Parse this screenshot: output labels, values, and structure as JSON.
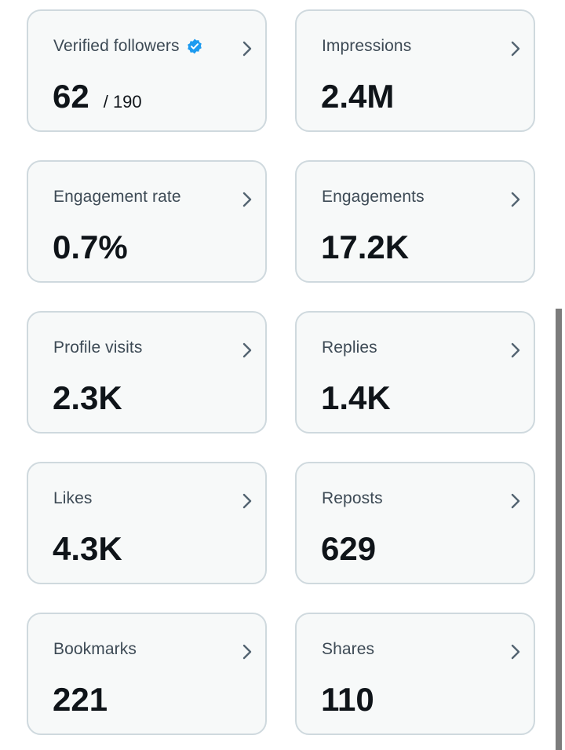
{
  "metrics": [
    {
      "label": "Verified followers",
      "value": "62",
      "subvalue": "/ 190",
      "verified_badge_color": "#1d9bf0"
    },
    {
      "label": "Impressions",
      "value": "2.4M"
    },
    {
      "label": "Engagement rate",
      "value": "0.7%"
    },
    {
      "label": "Engagements",
      "value": "17.2K"
    },
    {
      "label": "Profile visits",
      "value": "2.3K"
    },
    {
      "label": "Replies",
      "value": "1.4K"
    },
    {
      "label": "Likes",
      "value": "4.3K"
    },
    {
      "label": "Reposts",
      "value": "629"
    },
    {
      "label": "Bookmarks",
      "value": "221"
    },
    {
      "label": "Shares",
      "value": "110"
    }
  ],
  "icons": {
    "chevron": "chevron-right-icon",
    "verified": "verified-badge-icon"
  }
}
